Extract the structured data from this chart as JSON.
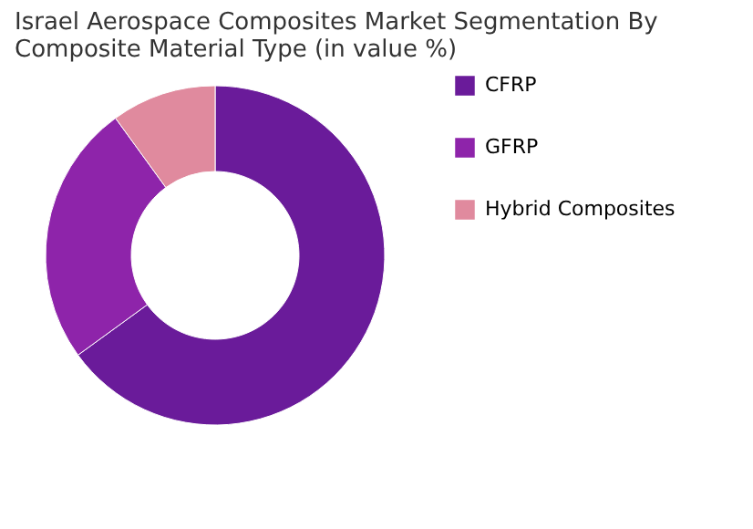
{
  "chart_data": {
    "type": "donut",
    "title": "Israel Aerospace Composites Market Segmentation By Composite Material Type (in value %)",
    "categories": [
      "CFRP",
      "GFRP",
      "Hybrid Composites"
    ],
    "values": [
      65,
      25,
      10
    ],
    "colors": [
      "#6a1b9a",
      "#8e24aa",
      "#e08a9e"
    ],
    "legend": "right"
  }
}
